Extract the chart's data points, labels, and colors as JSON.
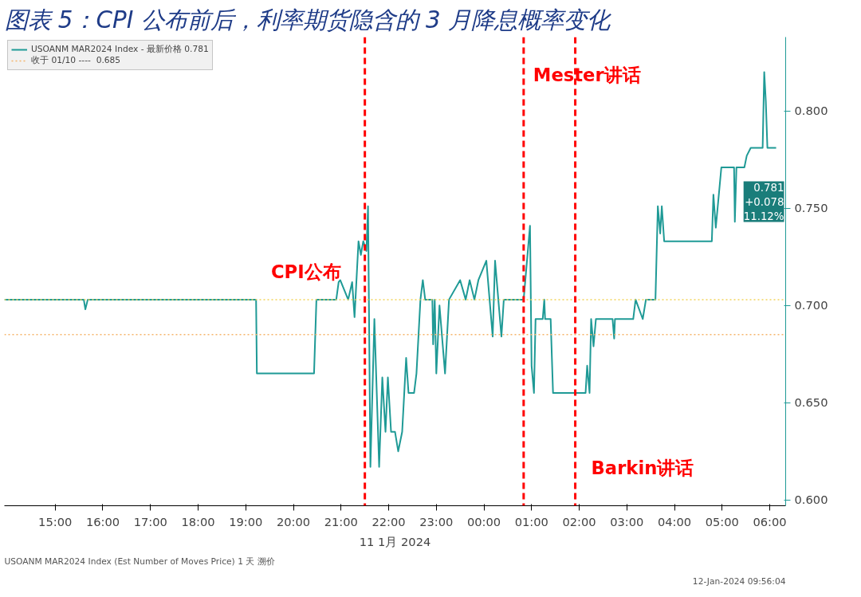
{
  "chart_data": {
    "type": "line",
    "title": "图表 5：CPI 公布前后，利率期货隐含的 3 月降息概率变化",
    "xlabel": "11 1月 2024",
    "x": [
      "2024-01-11T13:56",
      "2024-01-11T15:36",
      "2024-01-11T15:38",
      "2024-01-11T15:41",
      "2024-01-11T19:13",
      "2024-01-11T19:14",
      "2024-01-11T20:26",
      "2024-01-11T20:29",
      "2024-01-11T20:54",
      "2024-01-11T20:57",
      "2024-01-11T20:59",
      "2024-01-11T21:09",
      "2024-01-11T21:14",
      "2024-01-11T21:17",
      "2024-01-11T21:22",
      "2024-01-11T21:25",
      "2024-01-11T21:28",
      "2024-01-11T21:32",
      "2024-01-11T21:34",
      "2024-01-11T21:37",
      "2024-01-11T21:42",
      "2024-01-11T21:48",
      "2024-01-11T21:52",
      "2024-01-11T21:56",
      "2024-01-11T21:59",
      "2024-01-11T22:03",
      "2024-01-11T22:08",
      "2024-01-11T22:12",
      "2024-01-11T22:17",
      "2024-01-11T22:22",
      "2024-01-11T22:25",
      "2024-01-11T22:32",
      "2024-01-11T22:35",
      "2024-01-11T22:40",
      "2024-01-11T22:43",
      "2024-01-11T22:46",
      "2024-01-11T22:55",
      "2024-01-11T22:56",
      "2024-01-11T22:58",
      "2024-01-11T23:00",
      "2024-01-11T23:04",
      "2024-01-11T23:11",
      "2024-01-11T23:16",
      "2024-01-11T23:30",
      "2024-01-11T23:37",
      "2024-01-11T23:42",
      "2024-01-11T23:48",
      "2024-01-11T23:53",
      "2024-01-12T00:03",
      "2024-01-12T00:11",
      "2024-01-12T00:14",
      "2024-01-12T00:22",
      "2024-01-12T00:25",
      "2024-01-12T00:50",
      "2024-01-12T00:58",
      "2024-01-12T01:00",
      "2024-01-12T01:03",
      "2024-01-12T01:05",
      "2024-01-12T01:14",
      "2024-01-12T01:16",
      "2024-01-12T01:17",
      "2024-01-12T01:24",
      "2024-01-12T01:27",
      "2024-01-12T02:08",
      "2024-01-12T02:10",
      "2024-01-12T02:13",
      "2024-01-12T02:15",
      "2024-01-12T02:18",
      "2024-01-12T02:21",
      "2024-01-12T02:42",
      "2024-01-12T02:44",
      "2024-01-12T02:45",
      "2024-01-12T03:08",
      "2024-01-12T03:11",
      "2024-01-12T03:20",
      "2024-01-12T03:24",
      "2024-01-12T03:36",
      "2024-01-12T03:39",
      "2024-01-12T03:42",
      "2024-01-12T03:44",
      "2024-01-12T03:47",
      "2024-01-12T04:47",
      "2024-01-12T04:49",
      "2024-01-12T04:52",
      "2024-01-12T04:59",
      "2024-01-12T05:15",
      "2024-01-12T05:16",
      "2024-01-12T05:18",
      "2024-01-12T05:28",
      "2024-01-12T05:31",
      "2024-01-12T05:36",
      "2024-01-12T05:51",
      "2024-01-12T05:53",
      "2024-01-12T05:55",
      "2024-01-12T05:57",
      "2024-01-12T06:08"
    ],
    "series": [
      {
        "name": "USOANM MAR2024 Index - 最新价格 0.781",
        "color": "#1f9a96",
        "values": [
          0.703,
          0.703,
          0.698,
          0.703,
          0.703,
          0.665,
          0.665,
          0.703,
          0.703,
          0.712,
          0.713,
          0.703,
          0.712,
          0.694,
          0.733,
          0.726,
          0.733,
          0.728,
          0.751,
          0.617,
          0.693,
          0.617,
          0.663,
          0.635,
          0.663,
          0.635,
          0.635,
          0.625,
          0.635,
          0.673,
          0.655,
          0.655,
          0.665,
          0.703,
          0.713,
          0.703,
          0.703,
          0.68,
          0.703,
          0.665,
          0.7,
          0.665,
          0.703,
          0.713,
          0.703,
          0.713,
          0.703,
          0.713,
          0.723,
          0.684,
          0.723,
          0.684,
          0.703,
          0.703,
          0.741,
          0.669,
          0.655,
          0.693,
          0.693,
          0.703,
          0.693,
          0.693,
          0.655,
          0.655,
          0.669,
          0.655,
          0.693,
          0.679,
          0.693,
          0.693,
          0.683,
          0.693,
          0.693,
          0.703,
          0.693,
          0.703,
          0.703,
          0.751,
          0.737,
          0.751,
          0.733,
          0.733,
          0.757,
          0.74,
          0.771,
          0.771,
          0.743,
          0.771,
          0.771,
          0.777,
          0.781,
          0.781,
          0.82,
          0.805,
          0.781,
          0.781
        ]
      }
    ],
    "xlim": [
      "2024-01-11T13:56",
      "2024-01-12T06:20"
    ],
    "ylim": [
      0.597,
      0.838
    ],
    "xticks": [
      {
        "value": "2024-01-11T15:00",
        "label": "15:00"
      },
      {
        "value": "2024-01-11T16:00",
        "label": "16:00"
      },
      {
        "value": "2024-01-11T17:00",
        "label": "17:00"
      },
      {
        "value": "2024-01-11T18:00",
        "label": "18:00"
      },
      {
        "value": "2024-01-11T19:00",
        "label": "19:00"
      },
      {
        "value": "2024-01-11T20:00",
        "label": "20:00"
      },
      {
        "value": "2024-01-11T21:00",
        "label": "21:00"
      },
      {
        "value": "2024-01-11T22:00",
        "label": "22:00"
      },
      {
        "value": "2024-01-11T23:00",
        "label": "23:00"
      },
      {
        "value": "2024-01-12T00:00",
        "label": "00:00"
      },
      {
        "value": "2024-01-12T01:00",
        "label": "01:00"
      },
      {
        "value": "2024-01-12T02:00",
        "label": "02:00"
      },
      {
        "value": "2024-01-12T03:00",
        "label": "03:00"
      },
      {
        "value": "2024-01-12T04:00",
        "label": "04:00"
      },
      {
        "value": "2024-01-12T05:00",
        "label": "05:00"
      },
      {
        "value": "2024-01-12T06:00",
        "label": "06:00"
      }
    ],
    "yticks": [
      {
        "value": 0.6,
        "label": "0.600"
      },
      {
        "value": 0.65,
        "label": "0.650"
      },
      {
        "value": 0.7,
        "label": "0.700"
      },
      {
        "value": 0.75,
        "label": "0.750"
      },
      {
        "value": 0.8,
        "label": "0.800"
      }
    ],
    "ref_lines": [
      {
        "axis": "y",
        "value": 0.703,
        "color": "#f2d45c",
        "line_style": "dotted"
      },
      {
        "axis": "y",
        "value": 0.685,
        "color": "#f5b56b",
        "line_style": "dotted",
        "label": "收于 01/10 ----  0.685"
      },
      {
        "axis": "x",
        "value": "2024-01-11T21:30",
        "color": "#ff0000",
        "line_style": "dashed"
      },
      {
        "axis": "x",
        "value": "2024-01-12T00:50",
        "color": "#ff0000",
        "line_style": "dashed"
      },
      {
        "axis": "x",
        "value": "2024-01-12T01:55",
        "color": "#ff0000",
        "line_style": "dashed"
      }
    ],
    "annotations": [
      "CPI公布",
      "Mester讲话",
      "Barkin讲话",
      "0.781\n+0.078\n11.12%",
      "USOANM MAR2024 Index (Est Number of Moves Price) 1 天  溯价",
      "12-Jan-2024 09:56:04"
    ],
    "legend": "top left",
    "grid": false,
    "marker": "none",
    "line_style": "solid"
  }
}
